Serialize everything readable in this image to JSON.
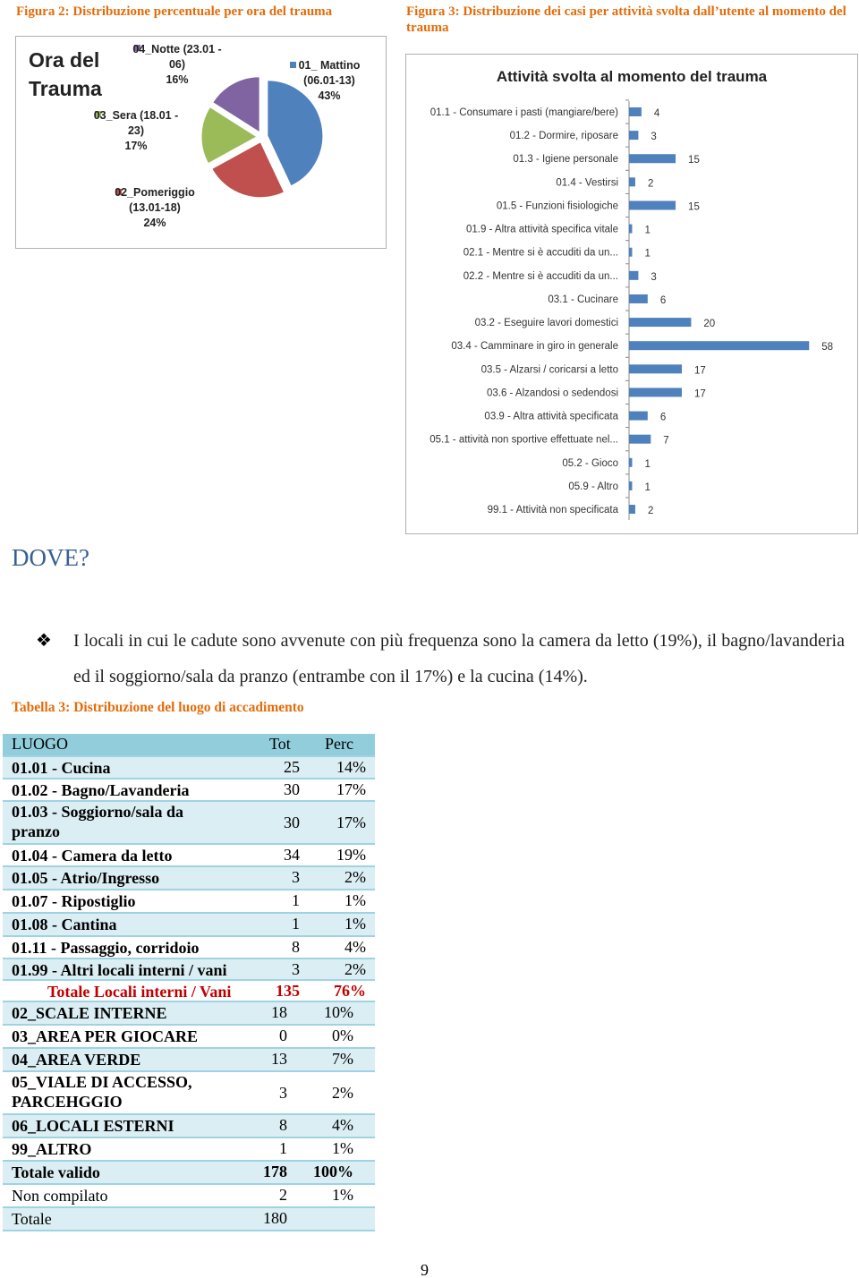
{
  "figures": [
    {
      "caption": "Figura 2: Distribuzione percentuale per ora del trauma"
    },
    {
      "caption": "Figura 3: Distribuzione dei casi per attività svolta dall’utente al momento del trauma"
    }
  ],
  "chart_data": [
    {
      "type": "pie",
      "title": "Ora del Trauma",
      "categories": [
        "01_ Mattino (06.01-13)",
        "02_Pomeriggio (13.01-18)",
        "03_Sera (18.01 - 23)",
        "04_Notte (23.01 - 06)"
      ],
      "values": [
        43,
        24,
        17,
        16
      ],
      "value_labels": [
        "43%",
        "24%",
        "17%",
        "16%"
      ],
      "colors": [
        "#4f81bd",
        "#c0504d",
        "#9bbb59",
        "#8064a2"
      ]
    },
    {
      "type": "bar",
      "orientation": "horizontal",
      "title": "Attività svolta al momento del trauma",
      "color": "#4f81bd",
      "categories": [
        "01.1 - Consumare i pasti (mangiare/bere)",
        "01.2 - Dormire, riposare",
        "01.3 - Igiene personale",
        "01.4 - Vestirsi",
        "01.5 - Funzioni fisiologiche",
        "01.9 - Altra attività specifica vitale",
        "02.1 - Mentre si è accuditi da un...",
        "02.2 - Mentre si è accuditi da un...",
        "03.1 - Cucinare",
        "03.2 - Eseguire lavori domestici",
        "03.4 - Camminare in giro in generale",
        "03.5 - Alzarsi / coricarsi a letto",
        "03.6 - Alzandosi o sedendosi",
        "03.9 - Altra attività specificata",
        "05.1 - attività non sportive effettuate nel...",
        "05.2 - Gioco",
        "05.9 - Altro",
        "99.1 - Attività non specificata"
      ],
      "values": [
        4,
        3,
        15,
        2,
        15,
        1,
        1,
        3,
        6,
        20,
        58,
        17,
        17,
        6,
        7,
        1,
        1,
        2
      ]
    }
  ],
  "section": {
    "heading": "DOVE?",
    "paragraph": "I locali in cui le cadute sono avvenute con più frequenza sono la camera da letto (19%), il bagno/lavanderia ed il soggiorno/sala da pranzo (entrambe con il 17%) e la cucina (14%)."
  },
  "table": {
    "caption": "Tabella 3: Distribuzione del luogo di accadimento",
    "header": [
      "LUOGO",
      "Tot",
      "Perc"
    ],
    "rows": [
      [
        "01.01 - Cucina",
        "25",
        "14%"
      ],
      [
        "01.02 - Bagno/Lavanderia",
        "30",
        "17%"
      ],
      [
        "01.03 - Soggiorno/sala da pranzo",
        "30",
        "17%"
      ],
      [
        "01.04 - Camera da letto",
        "34",
        "19%"
      ],
      [
        "01.05 - Atrio/Ingresso",
        "3",
        "2%"
      ],
      [
        "01.07 - Ripostiglio",
        "1",
        "1%"
      ],
      [
        "01.08 - Cantina",
        "1",
        "1%"
      ],
      [
        "01.11 - Passaggio, corridoio",
        "8",
        "4%"
      ],
      [
        "01.99 - Altri locali interni / vani",
        "3",
        "2%"
      ],
      [
        "Totale Locali interni / Vani",
        "135",
        "76%"
      ],
      [
        "02_SCALE INTERNE",
        "18",
        "10%"
      ],
      [
        "03_AREA PER GIOCARE",
        "0",
        "0%"
      ],
      [
        "04_AREA VERDE",
        "13",
        "7%"
      ],
      [
        "05_VIALE DI ACCESSO, PARCEHGGIO",
        "3",
        "2%"
      ],
      [
        "06_LOCALI ESTERNI",
        "8",
        "4%"
      ],
      [
        "99_ALTRO",
        "1",
        "1%"
      ],
      [
        "Totale valido",
        "178",
        "100%"
      ],
      [
        "Non compilato",
        "2",
        "1%"
      ],
      [
        "Totale",
        "180"
      ]
    ]
  },
  "page_number": "9"
}
